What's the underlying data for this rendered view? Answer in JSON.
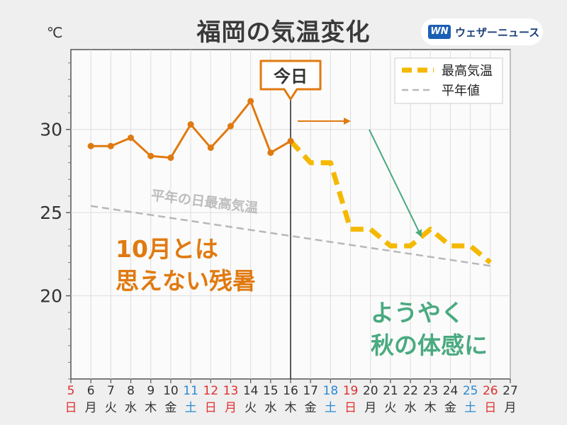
{
  "page": {
    "title": "福岡の気温変化",
    "unit": "℃",
    "brand_name": "ウェザーニュース",
    "brand_logo": "WN"
  },
  "colors": {
    "max_temp": "#e07a10",
    "forecast": "#f5b800",
    "normal": "#b8b8b8",
    "annotation_green": "#4aaa80",
    "weekday": "#333333",
    "saturday": "#2a8ad4",
    "holiday": "#e03030",
    "background": "#efefef",
    "plot_bg": "#fbfbfb",
    "grid": "#dddddd"
  },
  "chart_data": {
    "type": "line",
    "x": [
      5,
      6,
      7,
      8,
      9,
      10,
      11,
      12,
      13,
      14,
      15,
      16,
      17,
      18,
      19,
      20,
      21,
      22,
      23,
      24,
      25,
      26,
      27
    ],
    "xlim": [
      5,
      27
    ],
    "ylim": [
      15,
      34.8
    ],
    "yticks": [
      20,
      25,
      30
    ],
    "weekdays": [
      "日",
      "月",
      "火",
      "水",
      "木",
      "金",
      "土",
      "日",
      "月",
      "火",
      "水",
      "木",
      "金",
      "土",
      "日",
      "月",
      "火",
      "水",
      "木",
      "金",
      "土",
      "日",
      "月"
    ],
    "red_days": [
      5,
      12,
      13,
      19,
      26
    ],
    "blue_days": [
      11,
      18,
      25
    ],
    "today": 16,
    "today_label": "今日",
    "series": [
      {
        "name": "最高気温",
        "style": "observed",
        "x": [
          6,
          7,
          8,
          9,
          10,
          11,
          12,
          13,
          14,
          15,
          16
        ],
        "values": [
          29.0,
          29.0,
          29.5,
          28.4,
          28.3,
          30.3,
          28.9,
          30.2,
          31.7,
          28.6,
          29.3
        ]
      },
      {
        "name": "最高気温",
        "style": "forecast",
        "x": [
          16,
          17,
          18,
          19,
          20,
          21,
          22,
          23,
          24,
          25,
          26
        ],
        "values": [
          29.3,
          28.0,
          28.0,
          24.0,
          24.0,
          23.0,
          23.0,
          24.0,
          23.0,
          23.0,
          22.0
        ]
      },
      {
        "name": "平年値",
        "style": "normal",
        "x": [
          6,
          26
        ],
        "values": [
          25.4,
          21.8
        ]
      }
    ],
    "legend": {
      "position": "top-right",
      "entries": [
        "最高気温",
        "平年値"
      ]
    },
    "annotations": {
      "normal_label": "平年の日最高気温",
      "left_line1": "10月とは",
      "left_line2": "思えない残暑",
      "right_line1": "ようやく",
      "right_line2": "秋の体感に"
    }
  }
}
